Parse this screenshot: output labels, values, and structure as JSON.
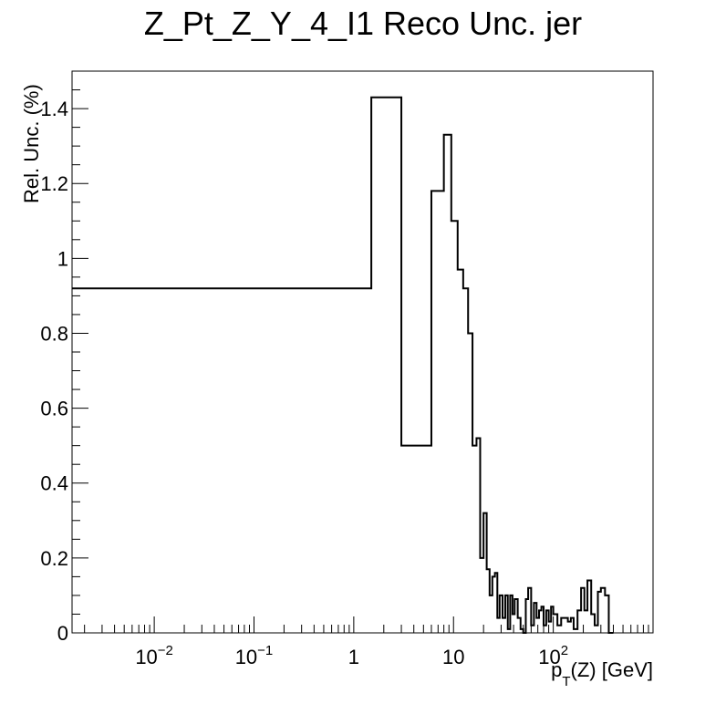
{
  "chart_data": {
    "type": "line",
    "title": "Z_Pt_Z_Y_4_I1 Reco Unc. jer",
    "xlabel": {
      "p": "p",
      "sub": "T",
      "rest": "(Z) [GeV]"
    },
    "ylabel": "Rel. Unc. (%)",
    "x_scale": "log",
    "xlim": [
      0.0015,
      1000
    ],
    "ylim": [
      0,
      1.5
    ],
    "y_ticks": [
      {
        "value": 0,
        "label": "0"
      },
      {
        "value": 0.2,
        "label": "0.2"
      },
      {
        "value": 0.4,
        "label": "0.4"
      },
      {
        "value": 0.6,
        "label": "0.6"
      },
      {
        "value": 0.8,
        "label": "0.8"
      },
      {
        "value": 1.0,
        "label": "1"
      },
      {
        "value": 1.2,
        "label": "1.2"
      },
      {
        "value": 1.4,
        "label": "1.4"
      }
    ],
    "x_ticks": [
      {
        "value": 0.01,
        "base": "10",
        "exp": "−2"
      },
      {
        "value": 0.1,
        "base": "10",
        "exp": "−1"
      },
      {
        "value": 1,
        "base": "1",
        "exp": ""
      },
      {
        "value": 10,
        "base": "10",
        "exp": ""
      },
      {
        "value": 100,
        "base": "10",
        "exp": "2"
      }
    ],
    "bin_edges": [
      0.0015,
      1.5,
      3,
      6,
      8,
      9.5,
      11,
      12.5,
      14,
      15.5,
      17,
      18.5,
      20,
      21.5,
      23,
      24.5,
      26,
      27.5,
      29,
      31,
      33,
      35,
      37,
      39,
      41,
      44,
      47,
      50,
      53,
      56,
      60,
      64,
      68,
      72,
      76,
      80,
      85,
      90,
      95,
      100,
      110,
      120,
      130,
      140,
      150,
      160,
      175,
      190,
      205,
      220,
      240,
      260,
      280,
      300,
      330,
      360,
      400
    ],
    "values": [
      0.92,
      1.43,
      0.5,
      1.18,
      1.33,
      1.1,
      0.97,
      0.92,
      0.8,
      0.5,
      0.52,
      0.2,
      0.32,
      0.17,
      0.1,
      0.15,
      0.16,
      0.04,
      0.1,
      0.04,
      0.1,
      0.01,
      0.1,
      0.05,
      0.09,
      0.04,
      0.01,
      0.0,
      0.09,
      0.12,
      0.02,
      0.08,
      0.04,
      0.06,
      0.07,
      0.02,
      0.06,
      0.03,
      0.07,
      0.05,
      0.02,
      0.04,
      0.04,
      0.03,
      0.04,
      0.01,
      0.06,
      0.12,
      0.06,
      0.14,
      0.05,
      0.02,
      0.11,
      0.12,
      0.1,
      0.0
    ]
  }
}
